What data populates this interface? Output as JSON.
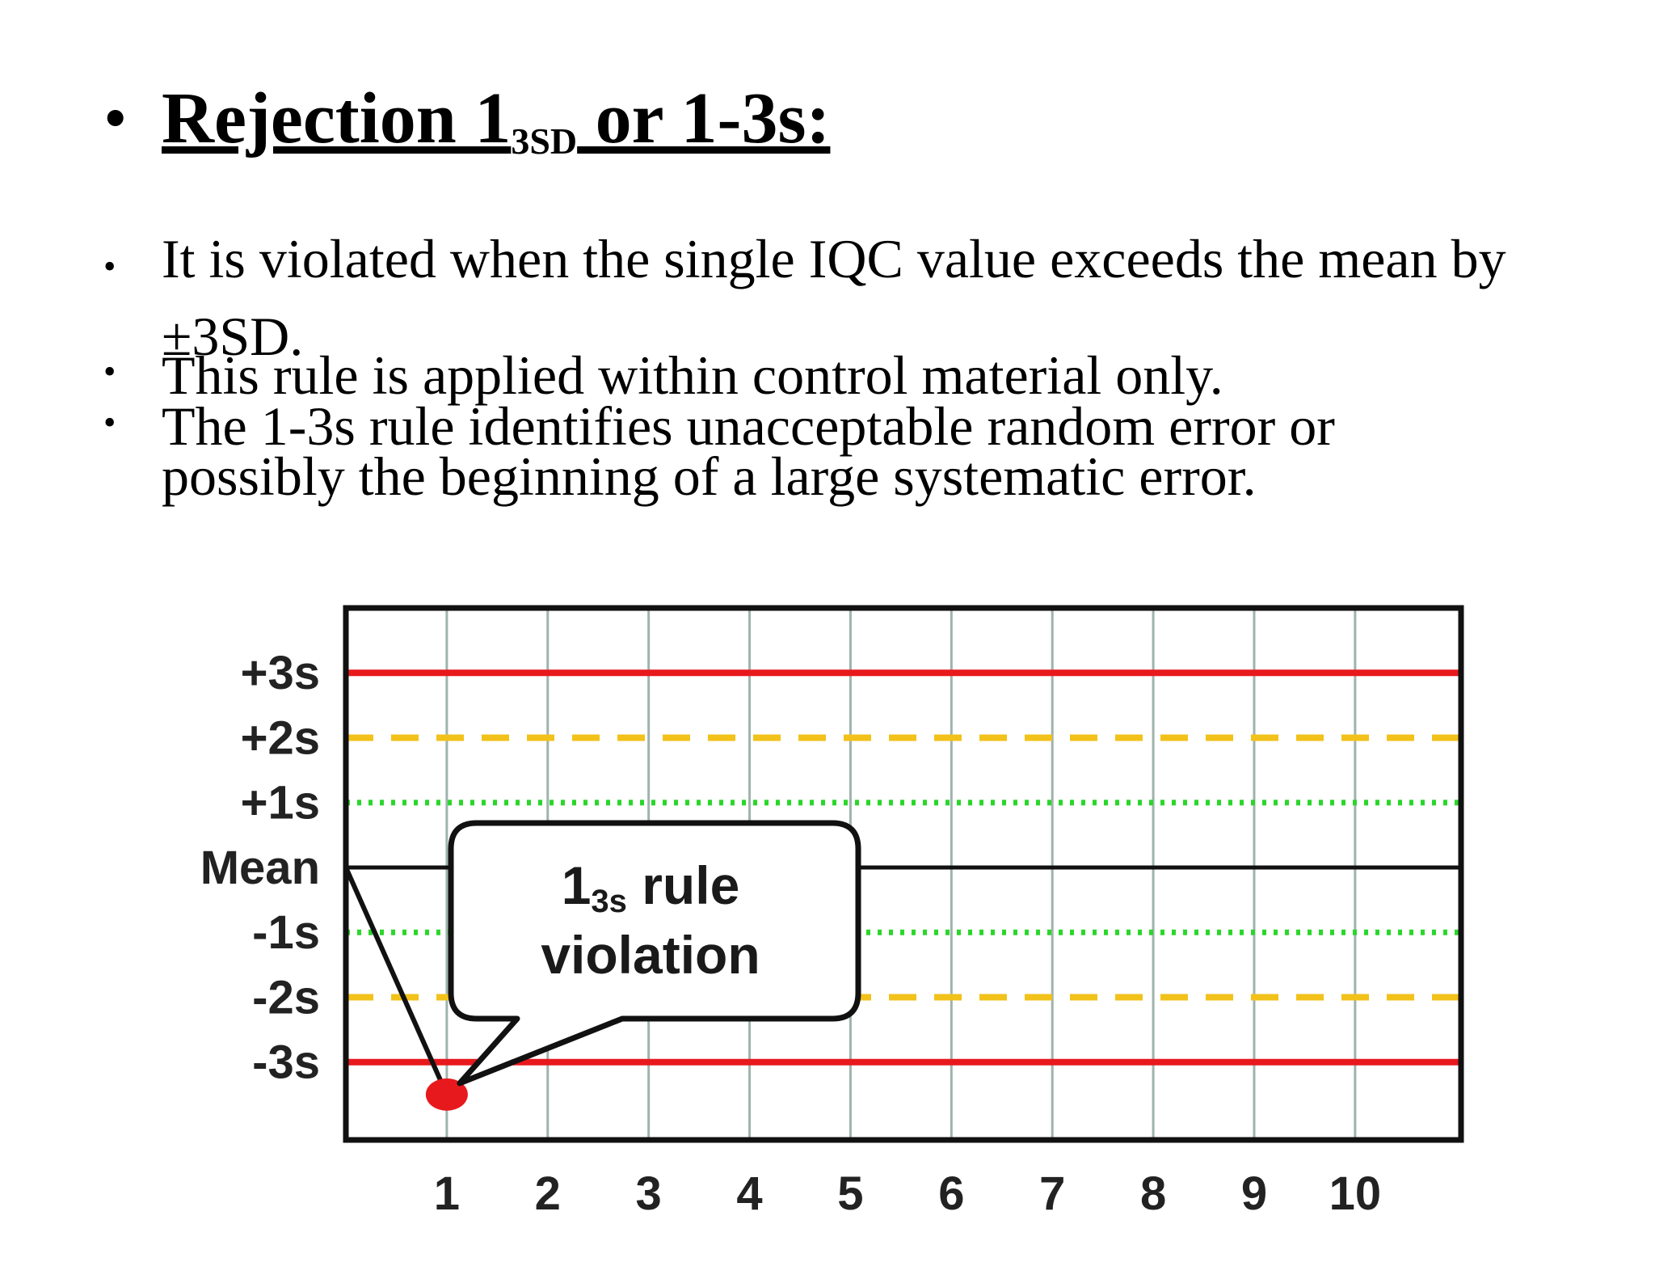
{
  "slide": {
    "title": {
      "bullet": "•",
      "prefix": "Rejection 1",
      "subscript": "3SD",
      "suffix": " or 1-3s:"
    },
    "bullets": [
      {
        "dot": "•",
        "text": "It is violated when the single IQC value exceeds the mean by ±3SD."
      },
      {
        "dot": "•",
        "text": "This rule is applied within control material only."
      },
      {
        "dot": "•",
        "line1": "The 1-3s rule identifies unacceptable random error or",
        "line2": "possibly the beginning of a large systematic error."
      }
    ]
  },
  "chart_data": {
    "type": "line",
    "x": [
      1,
      2,
      3,
      4,
      5,
      6,
      7,
      8,
      9,
      10
    ],
    "xticks": [
      "1",
      "2",
      "3",
      "4",
      "5",
      "6",
      "7",
      "8",
      "9",
      "10"
    ],
    "yticks": [
      {
        "label": "+3s",
        "value": 3
      },
      {
        "label": "+2s",
        "value": 2
      },
      {
        "label": "+1s",
        "value": 1
      },
      {
        "label": "Mean",
        "value": 0
      },
      {
        "label": "-1s",
        "value": -1
      },
      {
        "label": "-2s",
        "value": -2
      },
      {
        "label": "-3s",
        "value": -3
      }
    ],
    "control_lines": [
      {
        "value": 3,
        "style": "solid",
        "color": "#e8191d"
      },
      {
        "value": 2,
        "style": "dashed",
        "color": "#f2c21a"
      },
      {
        "value": 1,
        "style": "dotted",
        "color": "#2bd62b"
      },
      {
        "value": 0,
        "style": "solid",
        "color": "#111111"
      },
      {
        "value": -1,
        "style": "dotted",
        "color": "#2bd62b"
      },
      {
        "value": -2,
        "style": "dashed",
        "color": "#f2c21a"
      },
      {
        "value": -3,
        "style": "solid",
        "color": "#e8191d"
      }
    ],
    "series": [
      {
        "x": [
          0,
          1
        ],
        "y": [
          0,
          -3.5
        ],
        "color": "#111111"
      }
    ],
    "violation_point": {
      "x": 1,
      "y": -3.5,
      "color": "#e8191d"
    },
    "annotation": {
      "main": "1",
      "sub": "3s",
      "rest": " rule",
      "line2": "violation"
    },
    "xlim": [
      0,
      11.05
    ],
    "ylim": [
      -4.2,
      4.0
    ],
    "grid": true,
    "grid_color": "#9fb3ad",
    "legend": "none"
  }
}
